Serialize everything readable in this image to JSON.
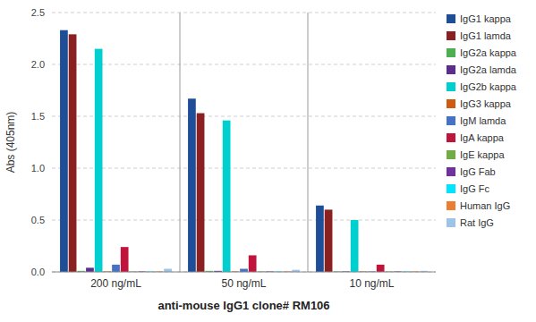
{
  "chart_data": {
    "type": "bar",
    "title": "anti-mouse IgG1 clone# RM106",
    "y_label": "Abs (405nm)",
    "categories": [
      "200 ng/mL",
      "50 ng/mL",
      "10 ng/mL"
    ],
    "series": [
      {
        "name": "IgG1 kappa",
        "color": "#1F4E98",
        "values": [
          2.33,
          1.67,
          0.64
        ]
      },
      {
        "name": "IgG1 lamda",
        "color": "#8B2020",
        "values": [
          2.29,
          1.53,
          0.6
        ]
      },
      {
        "name": "IgG2a kappa",
        "color": "#4CAF50",
        "values": [
          0.01,
          0.01,
          0.005
        ]
      },
      {
        "name": "IgG2a lamda",
        "color": "#5B2D8E",
        "values": [
          0.04,
          0.01,
          0.005
        ]
      },
      {
        "name": "IgG2b kappa",
        "color": "#00CFCF",
        "values": [
          2.15,
          1.46,
          0.5
        ]
      },
      {
        "name": "IgG3 kappa",
        "color": "#D05A10",
        "values": [
          0.005,
          0.005,
          0.005
        ]
      },
      {
        "name": "IgM lamda",
        "color": "#4472C4",
        "values": [
          0.07,
          0.03,
          0.005
        ]
      },
      {
        "name": "IgA kappa",
        "color": "#C0143C",
        "values": [
          0.24,
          0.16,
          0.07
        ]
      },
      {
        "name": "IgE kappa",
        "color": "#70AD47",
        "values": [
          0.005,
          0.005,
          0.005
        ]
      },
      {
        "name": "IgG Fab",
        "color": "#7030A0",
        "values": [
          0.005,
          0.005,
          0.005
        ]
      },
      {
        "name": "IgG Fc",
        "color": "#00E5FF",
        "values": [
          0.005,
          0.005,
          0.005
        ]
      },
      {
        "name": "Human IgG",
        "color": "#ED7D31",
        "values": [
          0.005,
          0.005,
          0.005
        ]
      },
      {
        "name": "Rat IgG",
        "color": "#9DC3E6",
        "values": [
          0.03,
          0.02,
          0.01
        ]
      }
    ],
    "ylim": [
      0,
      2.5
    ],
    "yticks": [
      {
        "value": 0,
        "label": "0.0"
      },
      0.5,
      {
        "value": 1.0,
        "label": "1.0"
      },
      1.5,
      {
        "value": 2.0,
        "label": "2.0"
      },
      2.5
    ],
    "grid": true,
    "legend": "right"
  }
}
